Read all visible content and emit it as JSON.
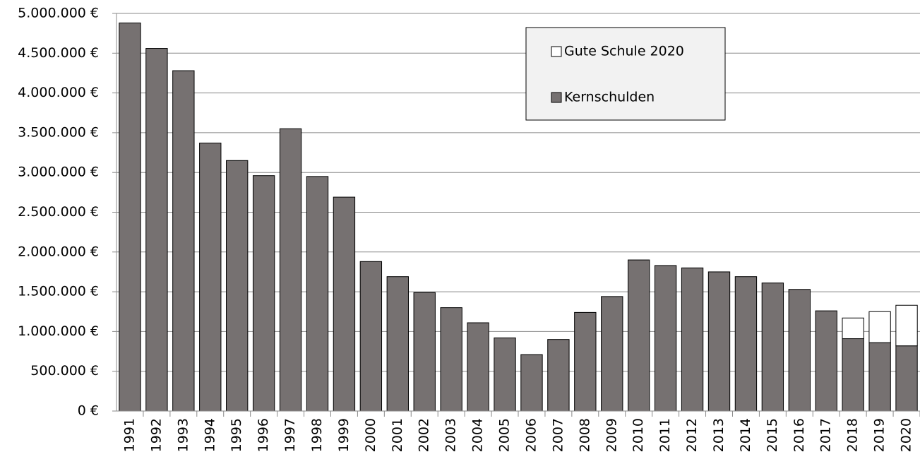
{
  "chart_data": {
    "type": "stacked_bar",
    "categories": [
      "1991",
      "1992",
      "1993",
      "1994",
      "1995",
      "1996",
      "1997",
      "1998",
      "1999",
      "2000",
      "2001",
      "2002",
      "2003",
      "2004",
      "2005",
      "2006",
      "2007",
      "2008",
      "2009",
      "2010",
      "2011",
      "2012",
      "2013",
      "2014",
      "2015",
      "2016",
      "2017",
      "2018",
      "2019",
      "2020"
    ],
    "series": [
      {
        "name": "Kernschulden",
        "color": "#767171",
        "values": [
          4880000,
          4560000,
          4280000,
          3370000,
          3150000,
          2960000,
          3550000,
          2950000,
          2690000,
          1880000,
          1690000,
          1490000,
          1300000,
          1110000,
          920000,
          710000,
          900000,
          1240000,
          1440000,
          1900000,
          1830000,
          1800000,
          1750000,
          1690000,
          1610000,
          1530000,
          1260000,
          910000,
          860000,
          820000
        ]
      },
      {
        "name": "Gute Schule 2020",
        "color": "#ffffff",
        "values": [
          null,
          null,
          null,
          null,
          null,
          null,
          null,
          null,
          null,
          null,
          null,
          null,
          null,
          null,
          null,
          null,
          null,
          null,
          null,
          null,
          null,
          null,
          null,
          null,
          null,
          null,
          null,
          260000,
          390000,
          510000
        ]
      }
    ],
    "ylim": [
      0,
      5000000
    ],
    "yticks": [
      {
        "value": 0,
        "label": "0 €"
      },
      {
        "value": 500000,
        "label": "500.000 €"
      },
      {
        "value": 1000000,
        "label": "1.000.000 €"
      },
      {
        "value": 1500000,
        "label": "1.500.000 €"
      },
      {
        "value": 2000000,
        "label": "2.000.000 €"
      },
      {
        "value": 2500000,
        "label": "2.500.000 €"
      },
      {
        "value": 3000000,
        "label": "3.000.000 €"
      },
      {
        "value": 3500000,
        "label": "3.500.000 €"
      },
      {
        "value": 4000000,
        "label": "4.000.000 €"
      },
      {
        "value": 4500000,
        "label": "4.500.000 €"
      },
      {
        "value": 5000000,
        "label": "5.000.000 €"
      }
    ],
    "grid": true,
    "legend": "top-right"
  }
}
